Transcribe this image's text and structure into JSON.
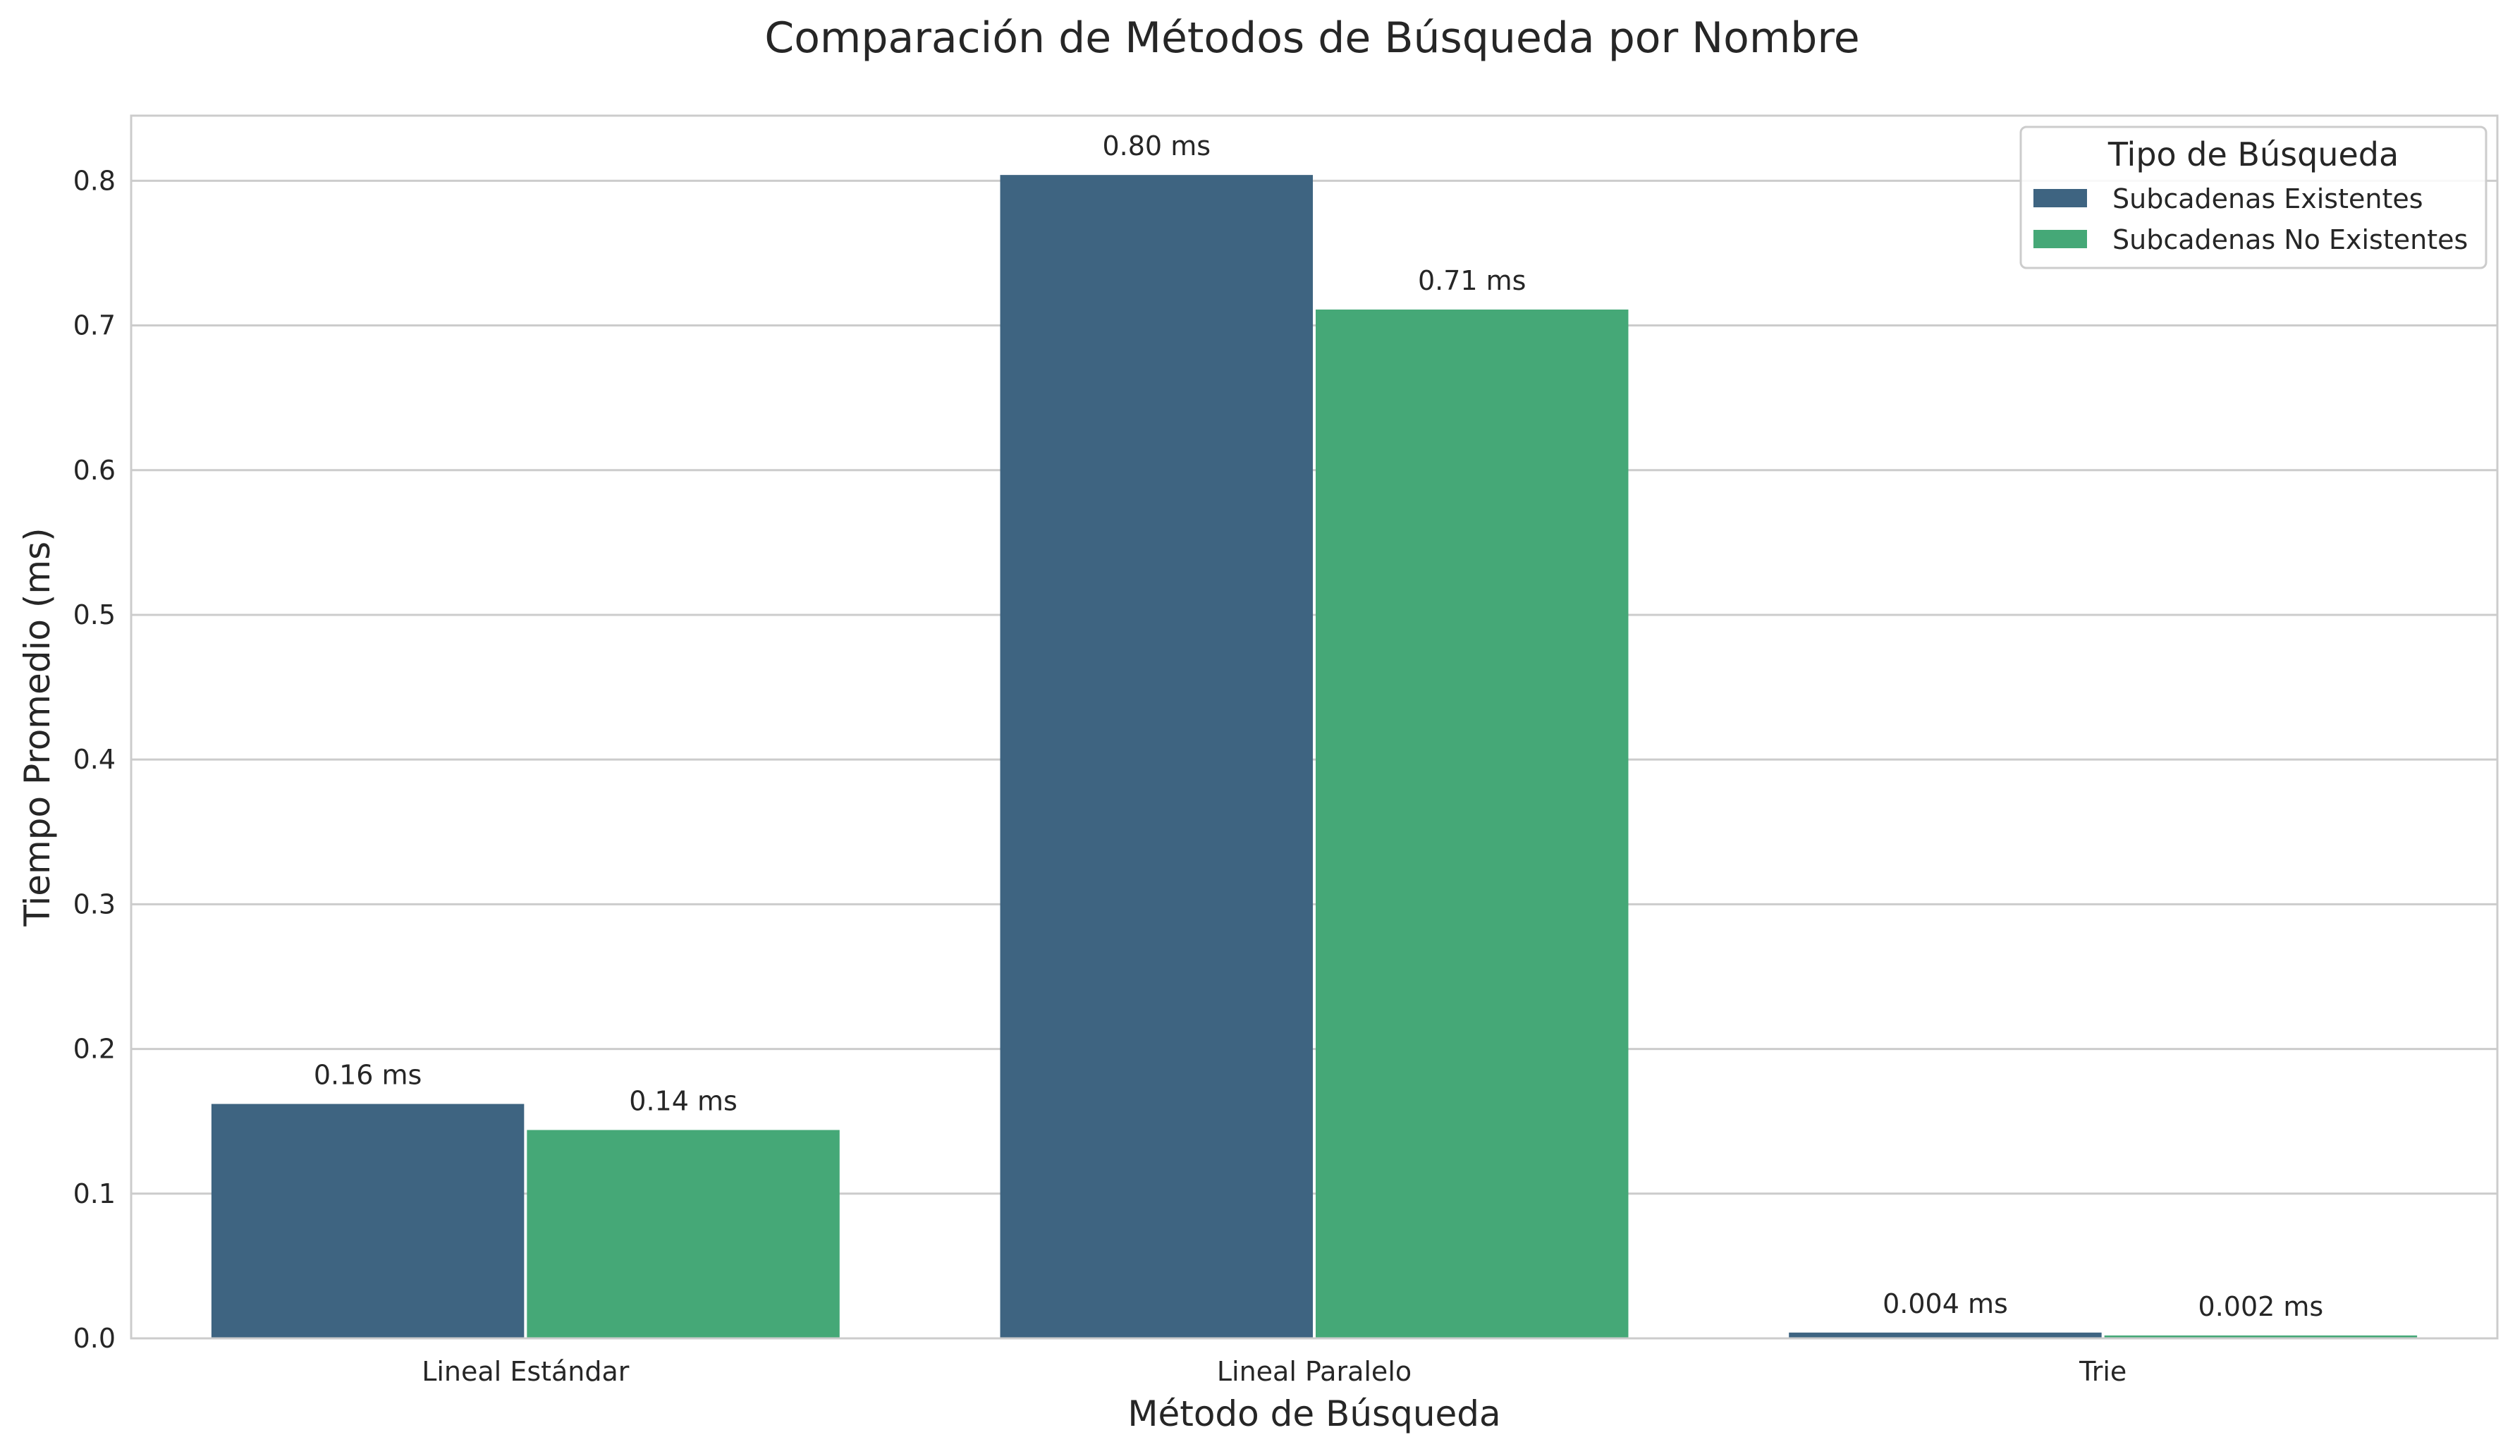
{
  "chart_data": {
    "type": "bar",
    "title": "Comparación de Métodos de Búsqueda por Nombre",
    "xlabel": "Método de Búsqueda",
    "ylabel": "Tiempo Promedio (ms)",
    "categories": [
      "Lineal Estándar",
      "Lineal Paralelo",
      "Trie"
    ],
    "ylim": [
      0,
      0.845
    ],
    "yticks": [
      0.0,
      0.1,
      0.2,
      0.3,
      0.4,
      0.5,
      0.6,
      0.7,
      0.8
    ],
    "ytick_labels": [
      "0.0",
      "0.1",
      "0.2",
      "0.3",
      "0.4",
      "0.5",
      "0.6",
      "0.7",
      "0.8"
    ],
    "grid": "horizontal",
    "legend": {
      "title": "Tipo de Búsqueda",
      "placement": "top-right"
    },
    "series": [
      {
        "name": "Subcadenas Existentes",
        "color": "#3e6481",
        "values": [
          0.162,
          0.804,
          0.004
        ],
        "labels": [
          "0.16 ms",
          "0.80 ms",
          "0.004 ms"
        ]
      },
      {
        "name": "Subcadenas No Existentes",
        "color": "#45a877",
        "values": [
          0.144,
          0.711,
          0.002
        ],
        "labels": [
          "0.14 ms",
          "0.71 ms",
          "0.002 ms"
        ]
      }
    ]
  }
}
